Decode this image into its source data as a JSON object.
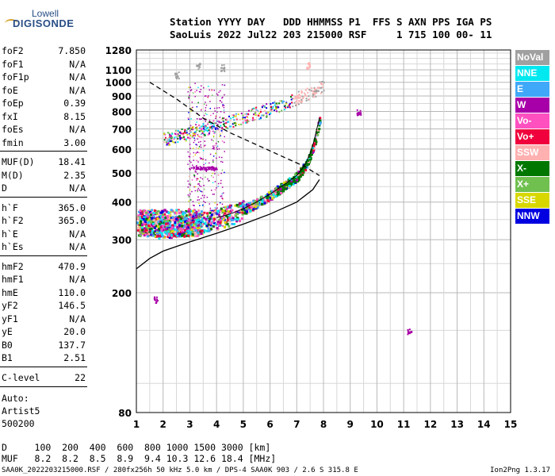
{
  "logo": {
    "line1": "Lowell",
    "line2": "DIGISONDE"
  },
  "header": {
    "line1": "Station YYYY DAY   DDD HHMMSS P1  FFS S AXN PPS IGA PS",
    "line2": "SaoLuis 2022 Jul22 203 215000 RSF     1 715 100 00- 11"
  },
  "params_group1": [
    {
      "name": "foF2",
      "value": "7.850"
    },
    {
      "name": "foF1",
      "value": "N/A"
    },
    {
      "name": "foF1p",
      "value": "N/A"
    },
    {
      "name": "foE",
      "value": "N/A"
    },
    {
      "name": "foEp",
      "value": "0.39"
    },
    {
      "name": "fxI",
      "value": "8.15"
    },
    {
      "name": "foEs",
      "value": "N/A"
    },
    {
      "name": "fmin",
      "value": "3.00"
    }
  ],
  "params_group2": [
    {
      "name": "MUF(D)",
      "value": "18.41"
    },
    {
      "name": "M(D)",
      "value": "2.35"
    },
    {
      "name": "D",
      "value": "N/A"
    }
  ],
  "params_group3": [
    {
      "name": "h`F",
      "value": "365.0"
    },
    {
      "name": "h`F2",
      "value": "365.0"
    },
    {
      "name": "h`E",
      "value": "N/A"
    },
    {
      "name": "h`Es",
      "value": "N/A"
    }
  ],
  "params_group4": [
    {
      "name": "hmF2",
      "value": "470.9"
    },
    {
      "name": "hmF1",
      "value": "N/A"
    },
    {
      "name": "hmE",
      "value": "110.0"
    },
    {
      "name": "yF2",
      "value": "146.5"
    },
    {
      "name": "yF1",
      "value": "N/A"
    },
    {
      "name": "yE",
      "value": "20.0"
    },
    {
      "name": "B0",
      "value": "137.7"
    },
    {
      "name": "B1",
      "value": "2.51"
    }
  ],
  "clevel": {
    "name": "C-level",
    "value": "22"
  },
  "auto": {
    "line1": "Auto:",
    "line2": "Artist5",
    "line3": "500200"
  },
  "legend": [
    {
      "label": "NoVal",
      "color": "#a0a0a0"
    },
    {
      "label": "NNE",
      "color": "#00e8f0"
    },
    {
      "label": "E",
      "color": "#40a8f8"
    },
    {
      "label": "W",
      "color": "#a800a8"
    },
    {
      "label": "Vo-",
      "color": "#ff50c0"
    },
    {
      "label": "Vo+",
      "color": "#f0003c"
    },
    {
      "label": "SSW",
      "color": "#ffb0b0"
    },
    {
      "label": "X-",
      "color": "#007800"
    },
    {
      "label": "X+",
      "color": "#70c050"
    },
    {
      "label": "SSE",
      "color": "#d8d800"
    },
    {
      "label": "NNW",
      "color": "#0000e0"
    }
  ],
  "bottom": {
    "d_row": "D     100  200  400  600  800 1000 1500 3000 [km]",
    "muf_row": "MUF   8.2  8.2  8.5  8.9  9.4 10.3 12.6 18.4 [MHz]"
  },
  "footer": {
    "left": "SAA0K_2022203215000.RSF / 280fx256h 50 kHz 5.0 km / DPS-4 SAA0K 903 / 2.6 S 315.8 E",
    "right": "Ion2Png 1.3.17"
  },
  "chart_data": {
    "type": "scatter",
    "title": "",
    "xlabel": "",
    "ylabel": "",
    "xlim": [
      1,
      15
    ],
    "ylim": [
      80,
      1280
    ],
    "y_scale": "log",
    "grid": true,
    "x_ticks": [
      "1",
      "2",
      "3",
      "4",
      "5",
      "6",
      "7",
      "8",
      "9",
      "10",
      "11",
      "12",
      "13",
      "14",
      "15"
    ],
    "y_ticks": [
      {
        "value": 80,
        "label": "80"
      },
      {
        "value": 200,
        "label": "200"
      },
      {
        "value": 300,
        "label": "300"
      },
      {
        "value": 400,
        "label": "400"
      },
      {
        "value": 500,
        "label": "500"
      },
      {
        "value": 600,
        "label": "600"
      },
      {
        "value": 700,
        "label": "700"
      },
      {
        "value": 800,
        "label": "800"
      },
      {
        "value": 900,
        "label": "900"
      },
      {
        "value": 1000,
        "label": "1000"
      },
      {
        "value": 1100,
        "label": "1100"
      },
      {
        "value": 1280,
        "label": "1280"
      }
    ],
    "y_minor_grid": [
      100,
      150,
      250,
      350,
      450,
      550,
      650,
      750,
      850,
      950,
      1050,
      1150,
      1200,
      1250
    ],
    "profile_curve": [
      [
        1.0,
        240
      ],
      [
        1.5,
        260
      ],
      [
        2.0,
        275
      ],
      [
        3.0,
        295
      ],
      [
        4.0,
        315
      ],
      [
        5.0,
        338
      ],
      [
        6.0,
        365
      ],
      [
        7.0,
        400
      ],
      [
        7.6,
        440
      ],
      [
        7.85,
        475
      ]
    ],
    "upper_curve_dashed": [
      [
        1.5,
        1000
      ],
      [
        2.5,
        880
      ],
      [
        3.5,
        760
      ],
      [
        4.5,
        680
      ],
      [
        5.5,
        620
      ],
      [
        6.5,
        565
      ],
      [
        7.3,
        525
      ],
      [
        7.85,
        490
      ]
    ],
    "trace_oF2": [
      [
        1.1,
        340
      ],
      [
        1.5,
        335
      ],
      [
        2.0,
        330
      ],
      [
        2.5,
        335
      ],
      [
        3.0,
        340
      ],
      [
        3.5,
        345
      ],
      [
        4.0,
        355
      ],
      [
        4.5,
        365
      ],
      [
        5.0,
        380
      ],
      [
        5.5,
        400
      ],
      [
        6.0,
        425
      ],
      [
        6.5,
        455
      ],
      [
        7.0,
        490
      ],
      [
        7.3,
        530
      ],
      [
        7.5,
        580
      ],
      [
        7.65,
        640
      ],
      [
        7.75,
        700
      ],
      [
        7.85,
        760
      ]
    ],
    "trace_multihop": [
      [
        2.0,
        650
      ],
      [
        3.0,
        680
      ],
      [
        4.0,
        720
      ],
      [
        5.0,
        770
      ],
      [
        6.0,
        820
      ],
      [
        6.5,
        850
      ],
      [
        7.0,
        890
      ],
      [
        7.5,
        930
      ],
      [
        8.0,
        980
      ]
    ],
    "extra_clusters": [
      {
        "x": 2.5,
        "y": 1060,
        "series": "NoVal"
      },
      {
        "x": 3.3,
        "y": 1140,
        "series": "NoVal"
      },
      {
        "x": 4.2,
        "y": 1120,
        "series": "NoVal"
      },
      {
        "x": 7.4,
        "y": 1140,
        "series": "SSW"
      },
      {
        "x": 9.3,
        "y": 795,
        "series": "W"
      },
      {
        "x": 11.2,
        "y": 150,
        "series": "W"
      },
      {
        "x": 1.7,
        "y": 190,
        "series": "W"
      }
    ]
  }
}
